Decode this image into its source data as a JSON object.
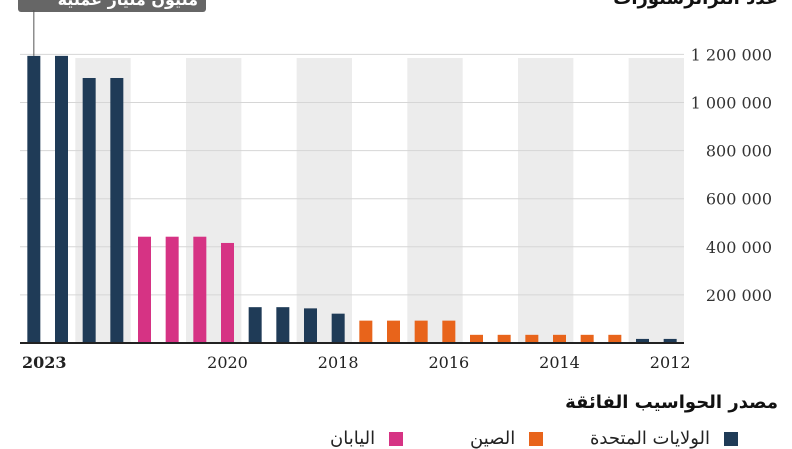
{
  "header": {
    "topright_label": "عدد الترانزستورات"
  },
  "tooltip": {
    "text": "مليون مليار عملية"
  },
  "footer": {
    "source_title": "مصدر الحواسيب الفائقة",
    "legend": [
      {
        "name": "الولايات المتحدة",
        "color": "#1f3b57"
      },
      {
        "name": "الصين",
        "color": "#e8641b"
      },
      {
        "name": "اليابان",
        "color": "#d63384"
      }
    ]
  },
  "chart_data": {
    "type": "bar",
    "x": [
      "2023a",
      "2023b",
      "2022a",
      "2022b",
      "2021a",
      "2021b",
      "2020a",
      "2020b",
      "2019a",
      "2019b",
      "2018a",
      "2018b",
      "2017a",
      "2017b",
      "2016a",
      "2016b",
      "2015a",
      "2015b",
      "2014a",
      "2014b",
      "2013a",
      "2013b",
      "2012a",
      "2012b"
    ],
    "values": [
      1194000,
      1194000,
      1102000,
      1102000,
      442000,
      442000,
      442000,
      416000,
      149000,
      149000,
      144000,
      122000,
      93000,
      93000,
      93000,
      93000,
      34000,
      34000,
      34000,
      34000,
      34000,
      34000,
      17000,
      17000
    ],
    "colors": [
      "#1f3b57",
      "#1f3b57",
      "#1f3b57",
      "#1f3b57",
      "#d63384",
      "#d63384",
      "#d63384",
      "#d63384",
      "#1f3b57",
      "#1f3b57",
      "#1f3b57",
      "#1f3b57",
      "#e8641b",
      "#e8641b",
      "#e8641b",
      "#e8641b",
      "#e8641b",
      "#e8641b",
      "#e8641b",
      "#e8641b",
      "#e8641b",
      "#e8641b",
      "#1f3b57",
      "#1f3b57"
    ],
    "xtick_labels": [
      {
        "label": "2023",
        "at": "2023a"
      },
      {
        "label": "2020",
        "at": "2020b"
      },
      {
        "label": "2018",
        "at": "2018b"
      },
      {
        "label": "2016",
        "at": "2016b"
      },
      {
        "label": "2014",
        "at": "2014b"
      },
      {
        "label": "2012",
        "at": "2012b"
      }
    ],
    "ytick_labels": [
      "200 000",
      "400 000",
      "600 000",
      "800 000",
      "1 000 000",
      "1 200 000"
    ],
    "ytick_values": [
      200000,
      400000,
      600000,
      800000,
      1000000,
      1200000
    ],
    "ylim": [
      0,
      1260000
    ],
    "grid": true,
    "shaded_years": true,
    "xlabel": "",
    "ylabel": "",
    "title": ""
  }
}
